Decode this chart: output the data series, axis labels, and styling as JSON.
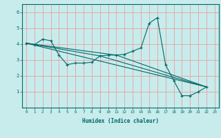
{
  "xlabel": "Humidex (Indice chaleur)",
  "bg_color": "#c8ebeb",
  "line_color": "#006868",
  "grid_color": "#e8a0a0",
  "xlim": [
    -0.5,
    23.5
  ],
  "ylim": [
    0,
    6.5
  ],
  "xticks": [
    0,
    1,
    2,
    3,
    4,
    5,
    6,
    7,
    8,
    9,
    10,
    11,
    12,
    13,
    14,
    15,
    16,
    17,
    18,
    19,
    20,
    21,
    22,
    23
  ],
  "yticks": [
    1,
    2,
    3,
    4,
    5,
    6
  ],
  "main_x": [
    0,
    1,
    2,
    3,
    4,
    5,
    6,
    7,
    8,
    9,
    10,
    11,
    12,
    13,
    14,
    15,
    16,
    17,
    18,
    19,
    20,
    21,
    22
  ],
  "main_y": [
    4.05,
    3.95,
    4.3,
    4.2,
    3.3,
    2.7,
    2.8,
    2.8,
    2.85,
    3.25,
    3.3,
    3.3,
    3.35,
    3.55,
    3.75,
    5.3,
    5.65,
    2.7,
    1.7,
    0.75,
    0.75,
    1.0,
    1.3
  ],
  "trend1_x": [
    0,
    22
  ],
  "trend1_y": [
    4.05,
    1.3
  ],
  "trend2_x": [
    0,
    9,
    22
  ],
  "trend2_y": [
    4.05,
    3.25,
    1.3
  ],
  "trend3_x": [
    0,
    11,
    22
  ],
  "trend3_y": [
    4.05,
    3.3,
    1.3
  ]
}
